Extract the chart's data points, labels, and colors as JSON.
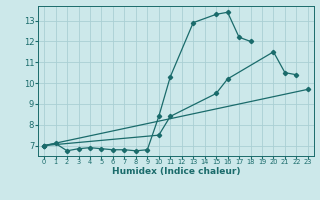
{
  "background_color": "#cce8ea",
  "grid_color": "#aacfd4",
  "line_color": "#1a6b6b",
  "xlabel": "Humidex (Indice chaleur)",
  "xlim": [
    -0.5,
    23.5
  ],
  "ylim": [
    6.5,
    13.7
  ],
  "yticks": [
    7,
    8,
    9,
    10,
    11,
    12,
    13
  ],
  "xticks": [
    0,
    1,
    2,
    3,
    4,
    5,
    6,
    7,
    8,
    9,
    10,
    11,
    12,
    13,
    14,
    15,
    16,
    17,
    18,
    19,
    20,
    21,
    22,
    23
  ],
  "line1_x": [
    0,
    1,
    2,
    3,
    4,
    5,
    6,
    7,
    8,
    9,
    10,
    11,
    13,
    15,
    16,
    17,
    18
  ],
  "line1_y": [
    7.0,
    7.1,
    6.75,
    6.85,
    6.9,
    6.85,
    6.8,
    6.8,
    6.75,
    6.8,
    8.4,
    10.3,
    12.9,
    13.3,
    13.4,
    12.2,
    12.0
  ],
  "line2_x": [
    0,
    10,
    11,
    15,
    16,
    20,
    21,
    22
  ],
  "line2_y": [
    7.0,
    7.5,
    8.4,
    9.5,
    10.2,
    11.5,
    10.5,
    10.4
  ],
  "line3_x": [
    0,
    23
  ],
  "line3_y": [
    7.0,
    9.7
  ]
}
